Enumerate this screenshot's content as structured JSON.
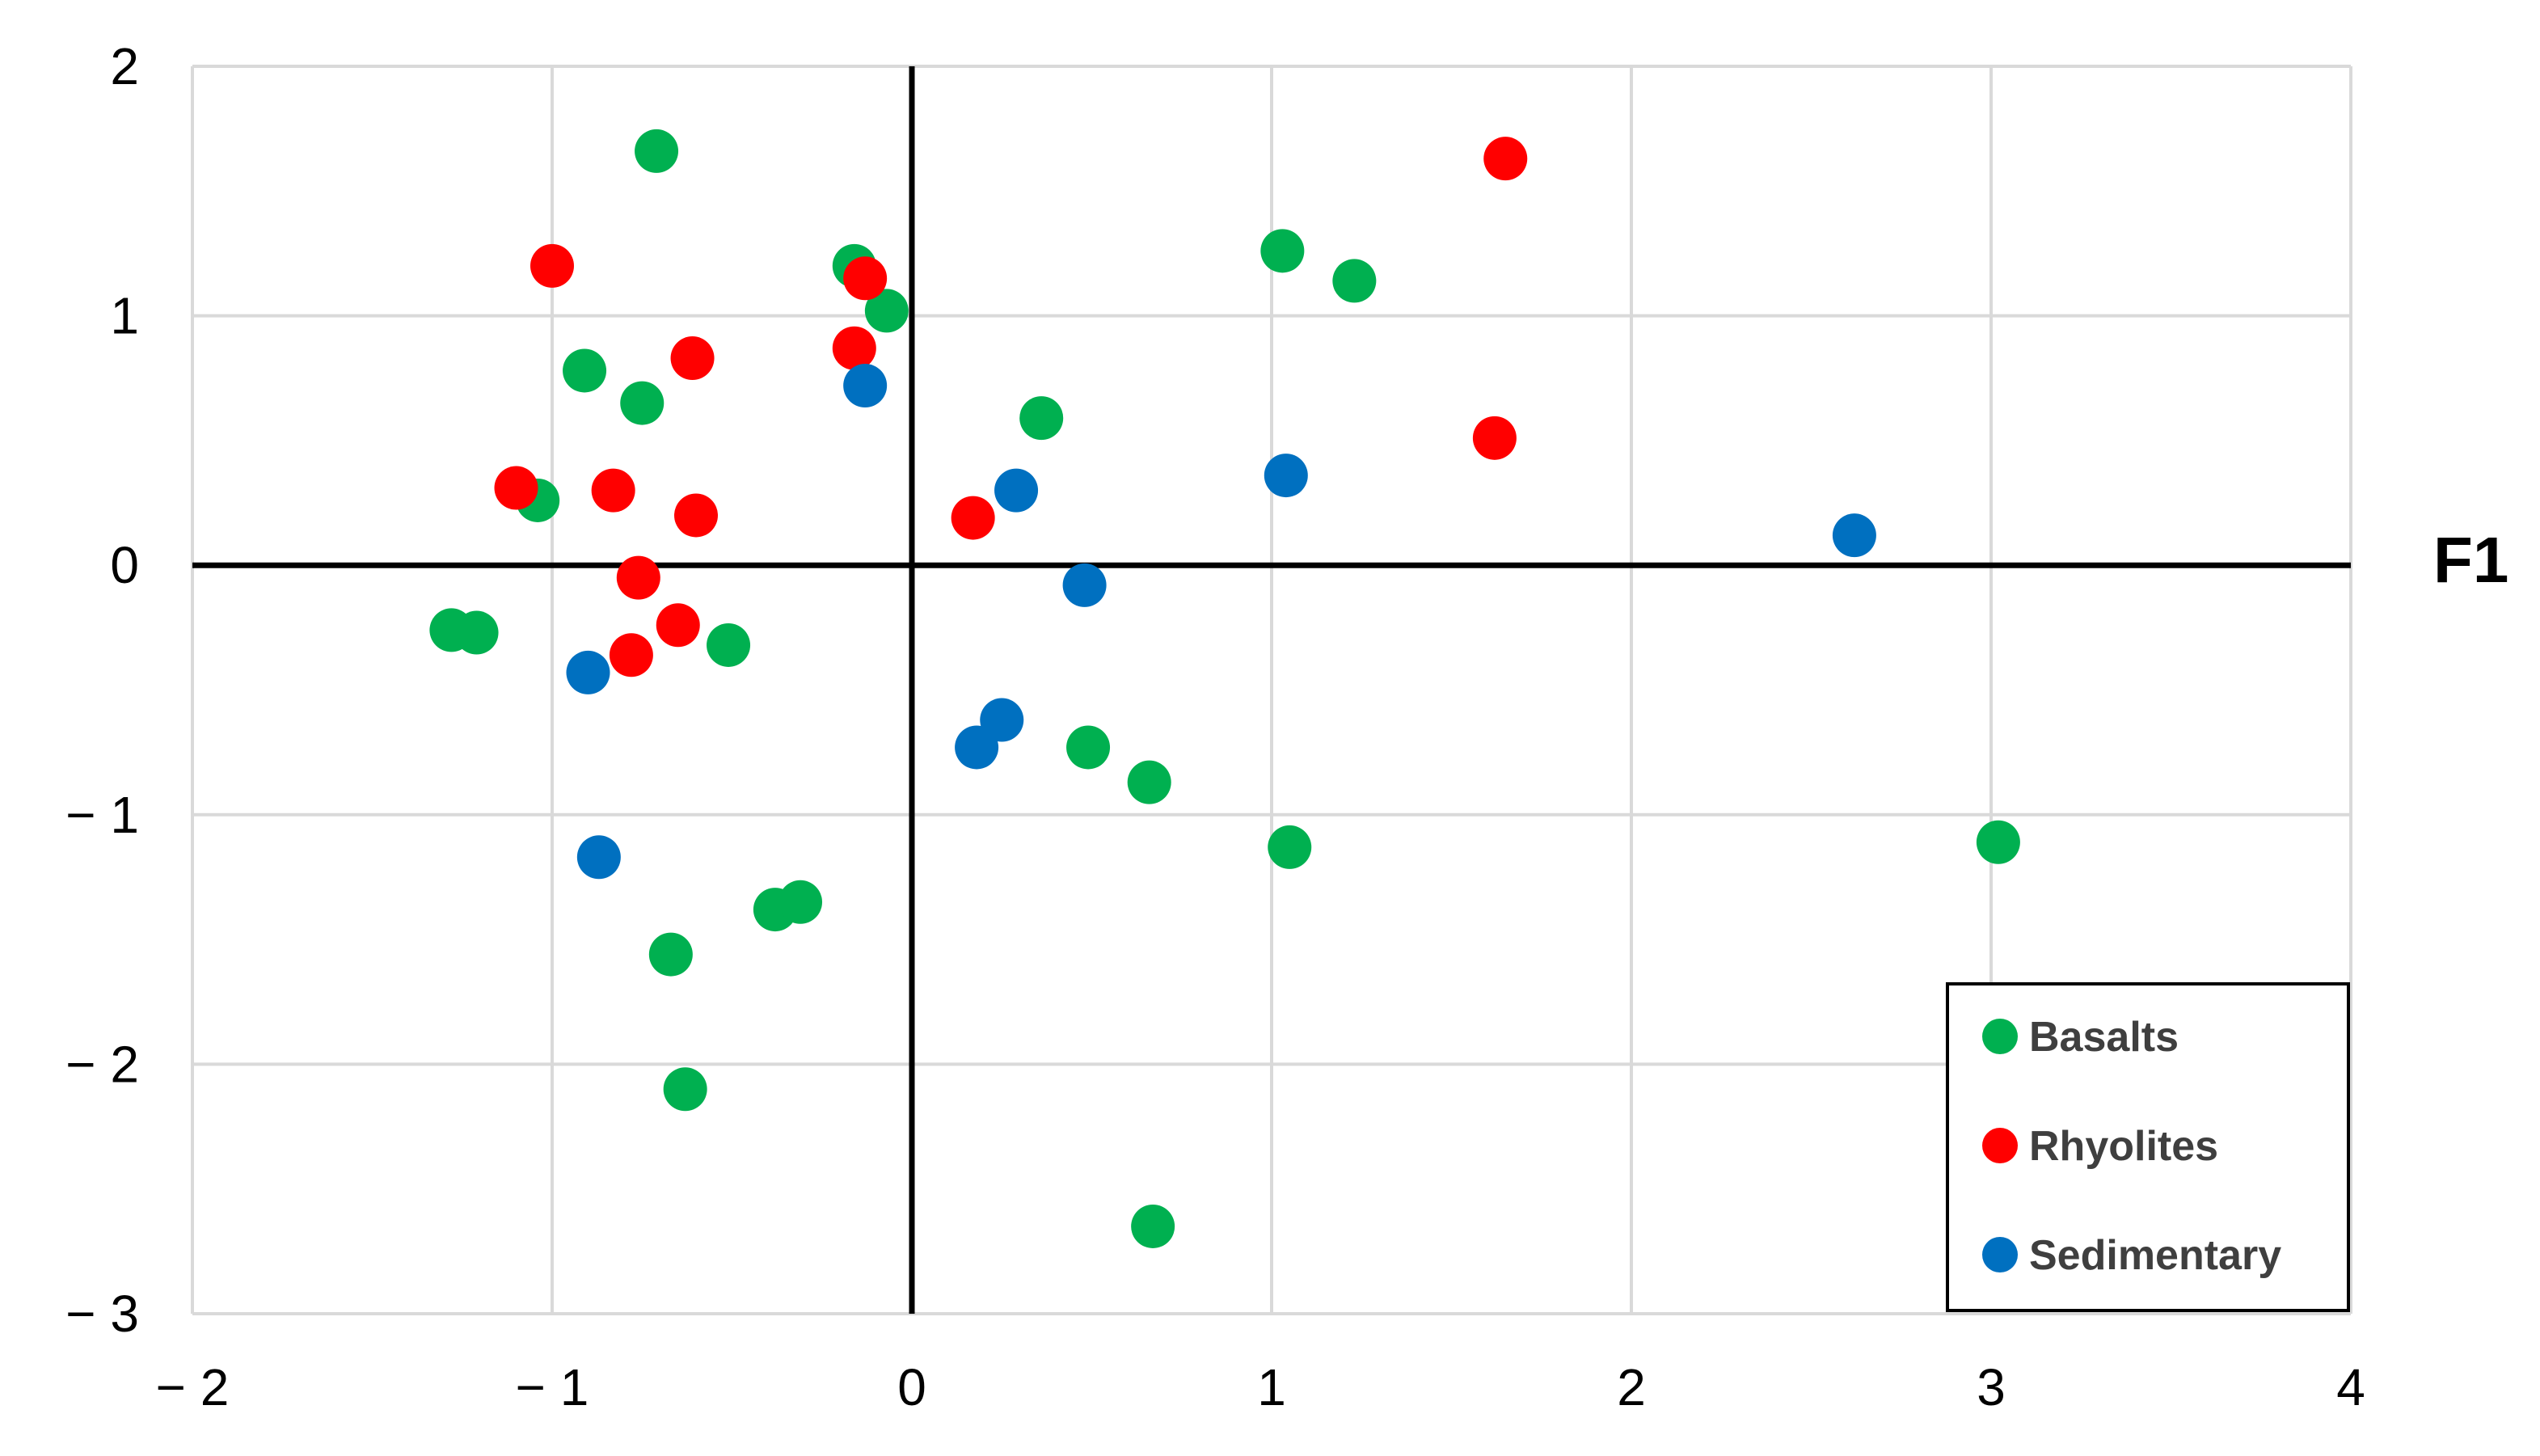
{
  "chart_data": {
    "type": "scatter",
    "xlabel": "F1",
    "ylabel": "",
    "xlim": [
      -2,
      4
    ],
    "ylim": [
      -3,
      2
    ],
    "x_ticks": [
      -2,
      -1,
      0,
      1,
      2,
      3,
      4
    ],
    "y_ticks": [
      2,
      1,
      0,
      -1,
      -2,
      -3
    ],
    "x_tick_labels": [
      "− 2",
      "− 1",
      "0",
      "1",
      "2",
      "3",
      "4"
    ],
    "y_tick_labels": [
      "2",
      "1",
      "0",
      "− 1",
      "− 2",
      "− 3"
    ],
    "grid": true,
    "legend_position": "bottom-right",
    "series": [
      {
        "name": "Basalts",
        "color": "#00b050",
        "points": [
          [
            -0.71,
            1.66
          ],
          [
            -0.16,
            1.2
          ],
          [
            -0.07,
            1.02
          ],
          [
            1.03,
            1.26
          ],
          [
            1.23,
            1.14
          ],
          [
            -0.91,
            0.78
          ],
          [
            -0.75,
            0.65
          ],
          [
            0.36,
            0.59
          ],
          [
            -1.04,
            0.26
          ],
          [
            -1.28,
            -0.26
          ],
          [
            -1.21,
            -0.27
          ],
          [
            -0.51,
            -0.32
          ],
          [
            0.49,
            -0.73
          ],
          [
            0.66,
            -0.87
          ],
          [
            1.05,
            -1.13
          ],
          [
            3.02,
            -1.11
          ],
          [
            -0.38,
            -1.38
          ],
          [
            -0.31,
            -1.35
          ],
          [
            -0.67,
            -1.56
          ],
          [
            -0.63,
            -2.1
          ],
          [
            0.67,
            -2.65
          ]
        ]
      },
      {
        "name": "Rhyolites",
        "color": "#ff0000",
        "points": [
          [
            1.65,
            1.63
          ],
          [
            -1.0,
            1.2
          ],
          [
            -0.13,
            1.15
          ],
          [
            -0.61,
            0.83
          ],
          [
            -0.16,
            0.87
          ],
          [
            1.62,
            0.51
          ],
          [
            -1.1,
            0.31
          ],
          [
            -0.83,
            0.3
          ],
          [
            -0.6,
            0.2
          ],
          [
            0.17,
            0.19
          ],
          [
            -0.76,
            -0.05
          ],
          [
            -0.65,
            -0.24
          ],
          [
            -0.78,
            -0.36
          ]
        ]
      },
      {
        "name": "Sedimentary",
        "color": "#0070c0",
        "points": [
          [
            -0.13,
            0.72
          ],
          [
            0.29,
            0.3
          ],
          [
            1.04,
            0.36
          ],
          [
            2.62,
            0.12
          ],
          [
            0.48,
            -0.08
          ],
          [
            -0.9,
            -0.43
          ],
          [
            0.25,
            -0.62
          ],
          [
            0.18,
            -0.73
          ],
          [
            -0.87,
            -1.17
          ]
        ]
      }
    ]
  }
}
